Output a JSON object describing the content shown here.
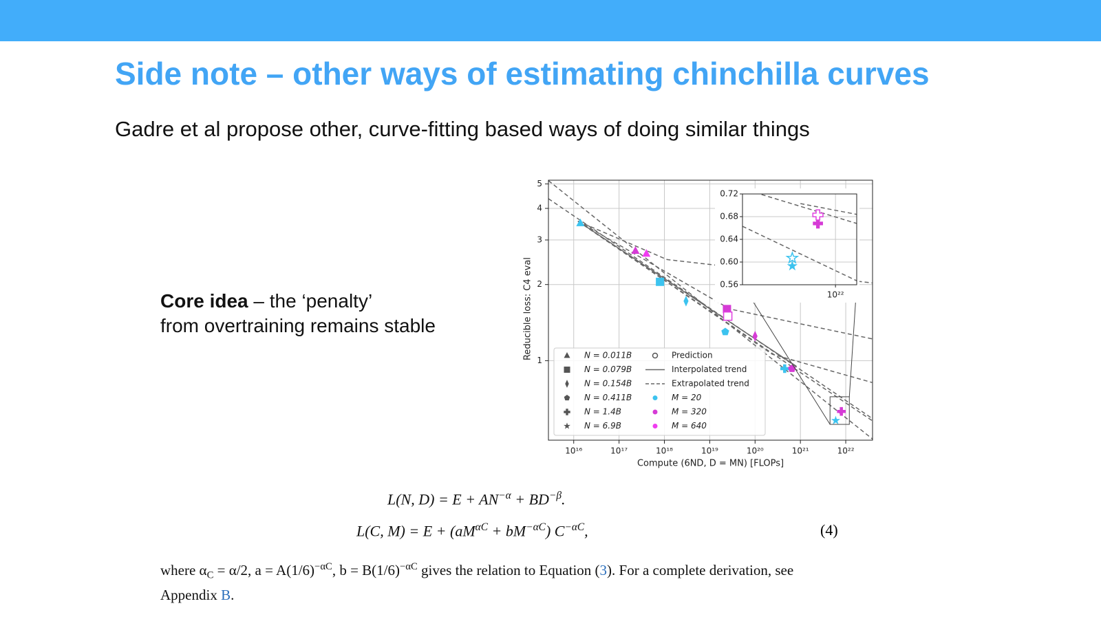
{
  "header": {
    "title": "Side note – other ways of estimating chinchilla curves",
    "subtitle": "Gadre et al propose other, curve-fitting based ways of doing similar things"
  },
  "core_idea": {
    "bold": "Core idea",
    "rest": " – the ‘penalty’",
    "line2": "from overtraining remains stable"
  },
  "figure": {
    "chart_data": {
      "type": "scatter",
      "xlabel": "Compute (6ND, D = MN) [FLOPs]",
      "ylabel": "Reducible loss: C4 eval",
      "xscale": "log",
      "yscale": "log",
      "grid": true,
      "xlim": [
        2770000000000000.0,
        3.9e+22
      ],
      "ylim": [
        0.485,
        5.17
      ],
      "xticks": [
        {
          "value": 1e+16,
          "label": "10¹⁶"
        },
        {
          "value": 1e+17,
          "label": "10¹⁷"
        },
        {
          "value": 1e+18,
          "label": "10¹⁸"
        },
        {
          "value": 1e+19,
          "label": "10¹⁹"
        },
        {
          "value": 1e+20,
          "label": "10²⁰"
        },
        {
          "value": 1e+21,
          "label": "10²¹"
        },
        {
          "value": 1e+22,
          "label": "10²²"
        }
      ],
      "yticks": [
        1,
        2,
        3,
        4,
        5
      ],
      "series": [
        {
          "name": "M = 20",
          "color": "#3cc3ef",
          "x": [
            1.4e+16,
            8e+17,
            3e+18,
            2.2e+19,
            4.5e+20,
            6e+21
          ],
          "y": [
            3.5,
            2.05,
            1.72,
            1.3,
            0.93,
            0.58
          ],
          "markers": [
            "triangle",
            "square",
            "diamond",
            "pentagon",
            "plus",
            "star"
          ]
        },
        {
          "name": "M = 320",
          "color": "#d63bd6",
          "x": [
            2.3e+17,
            2.4e+19,
            1e+20,
            6.5e+20,
            8e+21
          ],
          "y": [
            2.72,
            1.6,
            1.25,
            0.93,
            0.63
          ],
          "markers": [
            "triangle",
            "square",
            "diamond",
            "pentagon",
            "plus"
          ]
        },
        {
          "name": "M = 640",
          "color": "#f03cf0",
          "x": [
            4e+17
          ],
          "y": [
            2.65
          ],
          "markers": [
            "triangle"
          ]
        }
      ],
      "predictions": {
        "x": [
          2.5e+19
        ],
        "y": [
          1.5
        ],
        "colors": [
          "#e040e0"
        ],
        "markers": [
          "square"
        ]
      },
      "trends": [
        {
          "style": "dashed",
          "x": [
            2770000000000000.0,
            3.9e+22
          ],
          "y": [
            5.15,
            0.49
          ]
        },
        {
          "style": "dashed",
          "x": [
            2770000000000000.0,
            3.9e+22
          ],
          "y": [
            4.37,
            0.59
          ]
        },
        {
          "style": "dashed",
          "x": [
            1.24e+16,
            1.15e+18,
            3.8e+22
          ],
          "y": [
            3.56,
            2.51,
            2.03
          ]
        },
        {
          "style": "dashed",
          "x": [
            1.24e+16,
            2.8e+19,
            3.8e+22
          ],
          "y": [
            3.56,
            1.6,
            1.22
          ]
        },
        {
          "style": "dashed",
          "x": [
            1.24e+16,
            2.4e+20,
            3.8e+22
          ],
          "y": [
            3.56,
            1.06,
            0.82
          ]
        },
        {
          "style": "dashed",
          "x": [
            1.24e+16,
            9.8e+20,
            3.8e+22
          ],
          "y": [
            3.56,
            0.9,
            0.58
          ]
        },
        {
          "style": "solid",
          "x": [
            1.24e+16,
            8.2e+20
          ],
          "y": [
            3.56,
            0.95
          ]
        }
      ],
      "legend": {
        "corner": "lower left",
        "models": [
          {
            "label": "N = 0.011B",
            "marker": "triangle"
          },
          {
            "label": "N = 0.079B",
            "marker": "square"
          },
          {
            "label": "N = 0.154B",
            "marker": "diamond"
          },
          {
            "label": "N = 0.411B",
            "marker": "pentagon"
          },
          {
            "label": "N = 1.4B",
            "marker": "plus"
          },
          {
            "label": "N = 6.9B",
            "marker": "star"
          }
        ],
        "prediction": "Prediction",
        "interpolated": "Interpolated trend",
        "extrapolated": "Extrapolated trend"
      },
      "inset": {
        "xlim": [
          4.5e+21,
          1.2e+22
        ],
        "ylim": [
          0.56,
          0.72
        ],
        "xticks": [
          {
            "value": 1e+22,
            "label": "10²²"
          }
        ],
        "yticks": [
          0.72,
          0.68,
          0.64,
          {
            "value": 0.6,
            "label": "0.60"
          },
          0.56
        ],
        "points": {
          "x": [
            8.6e+21,
            8.6e+21,
            6.9e+21,
            6.9e+21
          ],
          "y": [
            0.668,
            0.683,
            0.593,
            0.607
          ],
          "colors": [
            "#d63bd6",
            "#e040e0",
            "#3cc3ef",
            "#3cc3ef"
          ],
          "markers": [
            "plus",
            "plus",
            "star",
            "star"
          ],
          "hollow": [
            false,
            true,
            false,
            true
          ]
        },
        "trends": [
          {
            "style": "dashed",
            "x": [
              5.3e+21,
              1.2e+22
            ],
            "y": [
              0.719,
              0.668
            ]
          },
          {
            "style": "dashed",
            "x": [
              4.5e+21,
              1.2e+22
            ],
            "y": [
              0.663,
              0.567
            ]
          },
          {
            "style": "dashed",
            "x": [
              7.4e+21,
              1.2e+22
            ],
            "y": [
              0.703,
              0.684
            ]
          }
        ]
      }
    }
  },
  "equations": [
    {
      "segments": [
        {
          "text": "L(N, D) = E + AN"
        },
        {
          "text": "−α",
          "style": "sup"
        },
        {
          "text": " + BD"
        },
        {
          "text": "−β",
          "style": "sup"
        },
        {
          "text": "."
        }
      ]
    },
    {
      "segments": [
        {
          "text": "L(C, M) = E + (aM"
        },
        {
          "text": "αC",
          "style": "sup"
        },
        {
          "text": " + bM"
        },
        {
          "text": "−αC",
          "style": "sup"
        },
        {
          "text": ") C"
        },
        {
          "text": "−αC",
          "style": "sup"
        },
        {
          "text": ","
        }
      ],
      "number": "(4)"
    }
  ],
  "note": {
    "segments": [
      {
        "text": "where α"
      },
      {
        "text": "C",
        "style": "sub"
      },
      {
        "text": " = α/2, a = A(1/6)"
      },
      {
        "text": "−αC",
        "style": "sup"
      },
      {
        "text": ", b = B(1/6)"
      },
      {
        "text": "−αC",
        "style": "sup"
      },
      {
        "text": " gives the relation to Equation ("
      },
      {
        "text": "3",
        "style": "link"
      },
      {
        "text": "). For a complete derivation, see Appendix "
      },
      {
        "text": "B",
        "style": "link"
      },
      {
        "text": "."
      }
    ]
  }
}
